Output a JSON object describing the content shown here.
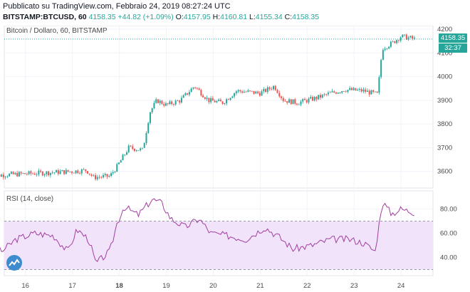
{
  "header": {
    "published": "Pubblicato su TradingView.com, Febbraio 24, 2019 08:27:24 UTC",
    "symbol": "BITSTAMP:BTCUSD, 60",
    "last": "4158.35",
    "change": "+44.82 (+1.09%)",
    "o_label": "O:",
    "o_value": "4157.95",
    "h_label": "H:",
    "h_value": "4160.81",
    "l_label": "L:",
    "l_value": "4155.34",
    "c_label": "C:",
    "c_value": "4158.35"
  },
  "main_pane": {
    "title": "Bitcoin / Dollaro, 60, BITSTAMP"
  },
  "rsi_pane": {
    "title": "RSI (14, close)"
  },
  "price_tag": {
    "value": "4158.35",
    "countdown": "32:37"
  },
  "colors": {
    "up": "#26a69a",
    "down": "#ef5350",
    "rsi_line": "#a23ea0",
    "rsi_band": "#f1e3fa"
  },
  "chart_data": [
    {
      "type": "candlestick",
      "title": "Bitcoin / Dollaro, 60, BITSTAMP",
      "x_ticks": [
        "16",
        "17",
        "18",
        "19",
        "20",
        "21",
        "22",
        "23",
        "24"
      ],
      "y_ticks": [
        3600,
        3700,
        3800,
        3900,
        4000,
        4100,
        4200
      ],
      "ylim": [
        3530,
        4215
      ],
      "last_price": 4158.35,
      "close_path": [
        {
          "x": 15.2,
          "y": 3580
        },
        {
          "x": 15.5,
          "y": 3585
        },
        {
          "x": 16.0,
          "y": 3590
        },
        {
          "x": 16.5,
          "y": 3595
        },
        {
          "x": 17.0,
          "y": 3600
        },
        {
          "x": 17.3,
          "y": 3605
        },
        {
          "x": 17.45,
          "y": 3575
        },
        {
          "x": 17.8,
          "y": 3580
        },
        {
          "x": 17.95,
          "y": 3620
        },
        {
          "x": 18.2,
          "y": 3700
        },
        {
          "x": 18.5,
          "y": 3690
        },
        {
          "x": 18.65,
          "y": 3850
        },
        {
          "x": 18.8,
          "y": 3900
        },
        {
          "x": 19.0,
          "y": 3880
        },
        {
          "x": 19.3,
          "y": 3900
        },
        {
          "x": 19.6,
          "y": 3960
        },
        {
          "x": 19.9,
          "y": 3900
        },
        {
          "x": 20.2,
          "y": 3890
        },
        {
          "x": 20.5,
          "y": 3940
        },
        {
          "x": 21.0,
          "y": 3930
        },
        {
          "x": 21.3,
          "y": 3960
        },
        {
          "x": 21.5,
          "y": 3900
        },
        {
          "x": 21.8,
          "y": 3890
        },
        {
          "x": 22.2,
          "y": 3910
        },
        {
          "x": 22.5,
          "y": 3930
        },
        {
          "x": 22.8,
          "y": 3945
        },
        {
          "x": 23.2,
          "y": 3940
        },
        {
          "x": 23.5,
          "y": 3925
        },
        {
          "x": 23.6,
          "y": 4120
        },
        {
          "x": 23.8,
          "y": 4140
        },
        {
          "x": 24.0,
          "y": 4170
        },
        {
          "x": 24.3,
          "y": 4158
        }
      ]
    },
    {
      "type": "line",
      "title": "RSI (14, close)",
      "y_ticks": [
        40,
        60,
        80
      ],
      "ylim": [
        25,
        95
      ],
      "bands": [
        30,
        70
      ],
      "series": [
        {
          "points": [
            {
              "x": 15.2,
              "y": 52
            },
            {
              "x": 15.5,
              "y": 45
            },
            {
              "x": 15.8,
              "y": 55
            },
            {
              "x": 16.2,
              "y": 60
            },
            {
              "x": 16.6,
              "y": 58
            },
            {
              "x": 16.9,
              "y": 45
            },
            {
              "x": 17.1,
              "y": 63
            },
            {
              "x": 17.35,
              "y": 55
            },
            {
              "x": 17.5,
              "y": 35
            },
            {
              "x": 17.8,
              "y": 45
            },
            {
              "x": 17.95,
              "y": 68
            },
            {
              "x": 18.1,
              "y": 82
            },
            {
              "x": 18.4,
              "y": 75
            },
            {
              "x": 18.7,
              "y": 88
            },
            {
              "x": 18.9,
              "y": 85
            },
            {
              "x": 19.1,
              "y": 72
            },
            {
              "x": 19.4,
              "y": 65
            },
            {
              "x": 19.7,
              "y": 72
            },
            {
              "x": 19.95,
              "y": 60
            },
            {
              "x": 20.3,
              "y": 58
            },
            {
              "x": 20.7,
              "y": 55
            },
            {
              "x": 21.1,
              "y": 65
            },
            {
              "x": 21.4,
              "y": 57
            },
            {
              "x": 21.7,
              "y": 47
            },
            {
              "x": 22.1,
              "y": 50
            },
            {
              "x": 22.5,
              "y": 55
            },
            {
              "x": 22.9,
              "y": 55
            },
            {
              "x": 23.2,
              "y": 52
            },
            {
              "x": 23.45,
              "y": 45
            },
            {
              "x": 23.6,
              "y": 86
            },
            {
              "x": 23.8,
              "y": 76
            },
            {
              "x": 24.0,
              "y": 80
            },
            {
              "x": 24.3,
              "y": 77
            }
          ]
        }
      ]
    }
  ]
}
